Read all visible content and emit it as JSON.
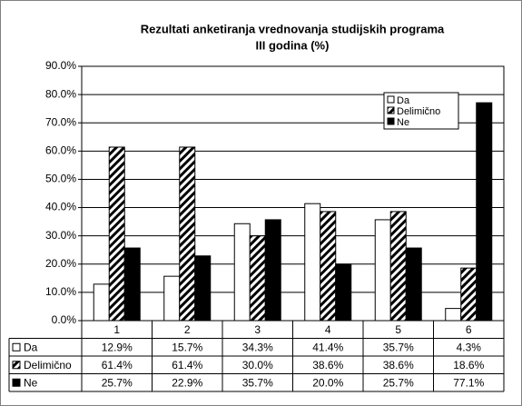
{
  "chart_data": {
    "type": "bar",
    "title": [
      "Rezultati anketiranja vrednovanja studijskih programa",
      "III godina (%)"
    ],
    "categories": [
      "1",
      "2",
      "3",
      "4",
      "5",
      "6"
    ],
    "series": [
      {
        "name": "Da",
        "color": "#ffffff",
        "values": [
          12.9,
          15.7,
          34.3,
          41.4,
          35.7,
          4.3
        ],
        "value_labels": [
          "12.9%",
          "15.7%",
          "34.3%",
          "41.4%",
          "35.7%",
          "4.3%"
        ]
      },
      {
        "name": "Delimično",
        "color": "#000000",
        "pattern": "diagonal",
        "values": [
          61.4,
          61.4,
          30.0,
          38.6,
          38.6,
          18.6
        ],
        "value_labels": [
          "61.4%",
          "61.4%",
          "30.0%",
          "38.6%",
          "38.6%",
          "18.6%"
        ]
      },
      {
        "name": "Ne",
        "color": "#000000",
        "values": [
          25.7,
          22.9,
          35.7,
          20.0,
          25.7,
          77.1
        ],
        "value_labels": [
          "25.7%",
          "22.9%",
          "35.7%",
          "20.0%",
          "25.7%",
          "77.1%"
        ]
      }
    ],
    "ylim": [
      0,
      90
    ],
    "yticks": [
      {
        "value": 0,
        "label": "0.0%"
      },
      {
        "value": 10,
        "label": "10.0%"
      },
      {
        "value": 20,
        "label": "20.0%"
      },
      {
        "value": 30,
        "label": "30.0%"
      },
      {
        "value": 40,
        "label": "40.0%"
      },
      {
        "value": 50,
        "label": "50.0%"
      },
      {
        "value": 60,
        "label": "60.0%"
      },
      {
        "value": 70,
        "label": "70.0%"
      },
      {
        "value": 80,
        "label": "80.0%"
      },
      {
        "value": 90,
        "label": "90.0%"
      }
    ],
    "grid": true,
    "legend": "top-right",
    "data_table": true
  }
}
